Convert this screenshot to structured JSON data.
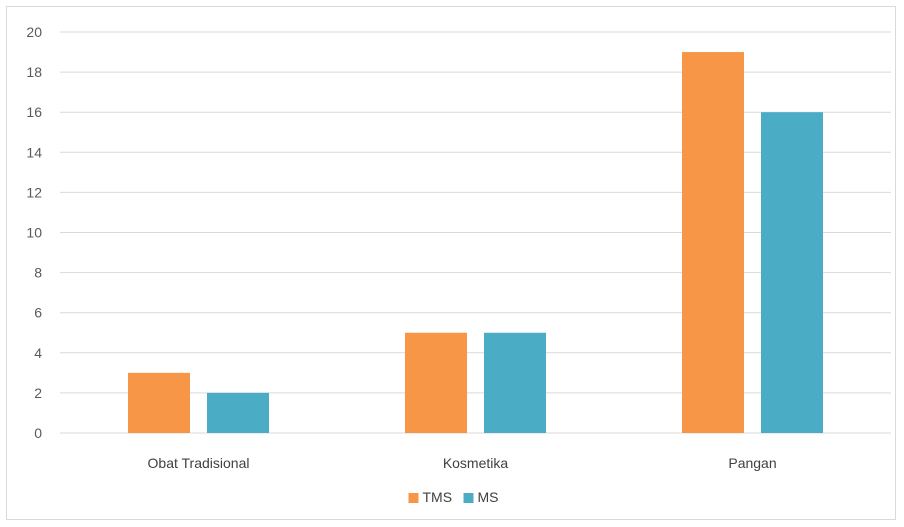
{
  "chart_data": {
    "type": "bar",
    "categories": [
      "Obat Tradisional",
      "Kosmetika",
      "Pangan"
    ],
    "series": [
      {
        "name": "TMS",
        "color": "#f79646",
        "values": [
          3,
          5,
          19
        ]
      },
      {
        "name": "MS",
        "color": "#4bacc6",
        "values": [
          2,
          5,
          16
        ]
      }
    ],
    "ylim": [
      0,
      20
    ],
    "yticks": [
      0,
      2,
      4,
      6,
      8,
      10,
      12,
      14,
      16,
      18,
      20
    ],
    "grid": true,
    "legend_position": "bottom",
    "title": "",
    "xlabel": "",
    "ylabel": ""
  }
}
